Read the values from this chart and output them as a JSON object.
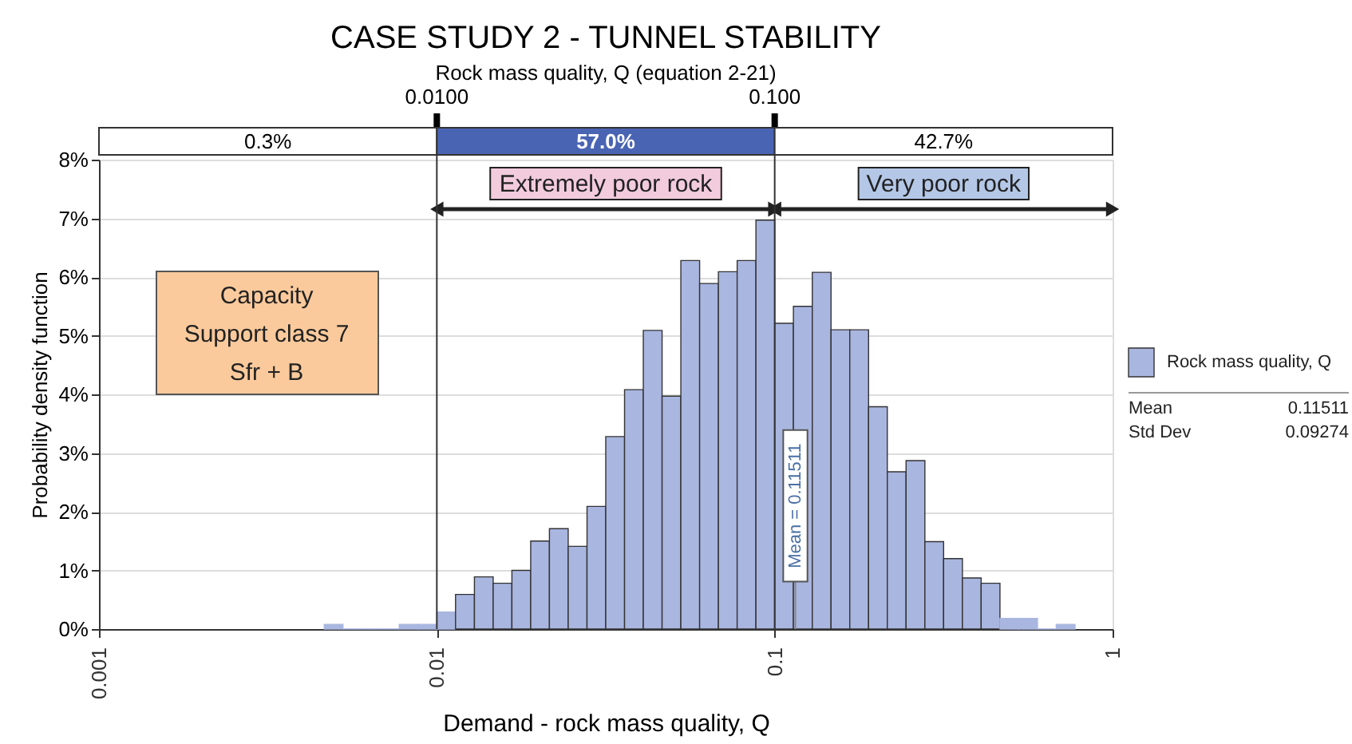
{
  "chart_data": {
    "type": "histogram",
    "title": "CASE STUDY 2 - TUNNEL STABILITY",
    "xlabel": "Demand - rock mass quality, Q",
    "ylabel": "Probability density function",
    "subtitle": "Rock mass quality, Q (equation 2-21)",
    "log": "x",
    "xlim": [
      0.001,
      1
    ],
    "xticks": [
      0.001,
      0.01,
      0.1,
      1
    ],
    "ylim": [
      0,
      8
    ],
    "yticks": [
      {
        "value": 0,
        "label": "0%"
      },
      {
        "value": 1,
        "label": "1%"
      },
      {
        "value": 2,
        "label": "2%"
      },
      {
        "value": 3,
        "label": "3%"
      },
      {
        "value": 4,
        "label": "4%"
      },
      {
        "value": 5,
        "label": "5%"
      },
      {
        "value": 6,
        "label": "6%"
      },
      {
        "value": 7,
        "label": "7%"
      },
      {
        "value": 8,
        "label": "8%"
      }
    ],
    "bins": [
      0.004642,
      0.005275,
      0.005995,
      0.006813,
      0.007743,
      0.008799,
      0.01,
      0.01136,
      0.01292,
      0.01468,
      0.01668,
      0.01896,
      0.02154,
      0.02448,
      0.02783,
      0.03162,
      0.03594,
      0.04084,
      0.04642,
      0.05275,
      0.05995,
      0.06813,
      0.07743,
      0.08799,
      0.1,
      0.1136,
      0.1292,
      0.1468,
      0.1668,
      0.1896,
      0.2154,
      0.2448,
      0.2783,
      0.3162,
      0.3594,
      0.4084,
      0.4642,
      0.5275,
      0.5995,
      0.6813,
      0.7743
    ],
    "series": [
      {
        "name": "Rock mass quality, Q",
        "color": "#a9b6e0",
        "values": [
          0.08,
          0,
          0,
          0,
          0.08,
          0.08,
          0.29,
          0.59,
          0.89,
          0.78,
          1.0,
          1.5,
          1.71,
          1.41,
          2.09,
          3.28,
          4.08,
          5.09,
          3.97,
          6.28,
          5.89,
          6.09,
          6.28,
          6.97,
          5.21,
          5.5,
          6.08,
          5.1,
          5.1,
          3.79,
          2.68,
          2.87,
          1.49,
          1.2,
          0.87,
          0.78,
          0.18,
          0.18,
          0,
          0.08
        ]
      }
    ],
    "ref_lines": [
      {
        "axis": "x",
        "value": 0.01,
        "label": "0.0100",
        "color": "#333333"
      },
      {
        "axis": "x",
        "value": 0.1,
        "label": "0.100",
        "color": "#333333"
      },
      {
        "axis": "x",
        "value": 0.11511,
        "label": null,
        "color": "#888888"
      }
    ],
    "annotations": [
      "0.3%",
      "57.0%",
      "42.7%",
      "Extremely poor rock",
      "Very poor rock",
      "Capacity\nSupport class 7\nSfr + B",
      "Mean",
      "0.11511",
      "Std Dev",
      "0.09274",
      {
        "text": "Mean = 0.11511",
        "x": 0.11511,
        "y": 2.1
      }
    ],
    "grid": "y",
    "legend": "right"
  }
}
